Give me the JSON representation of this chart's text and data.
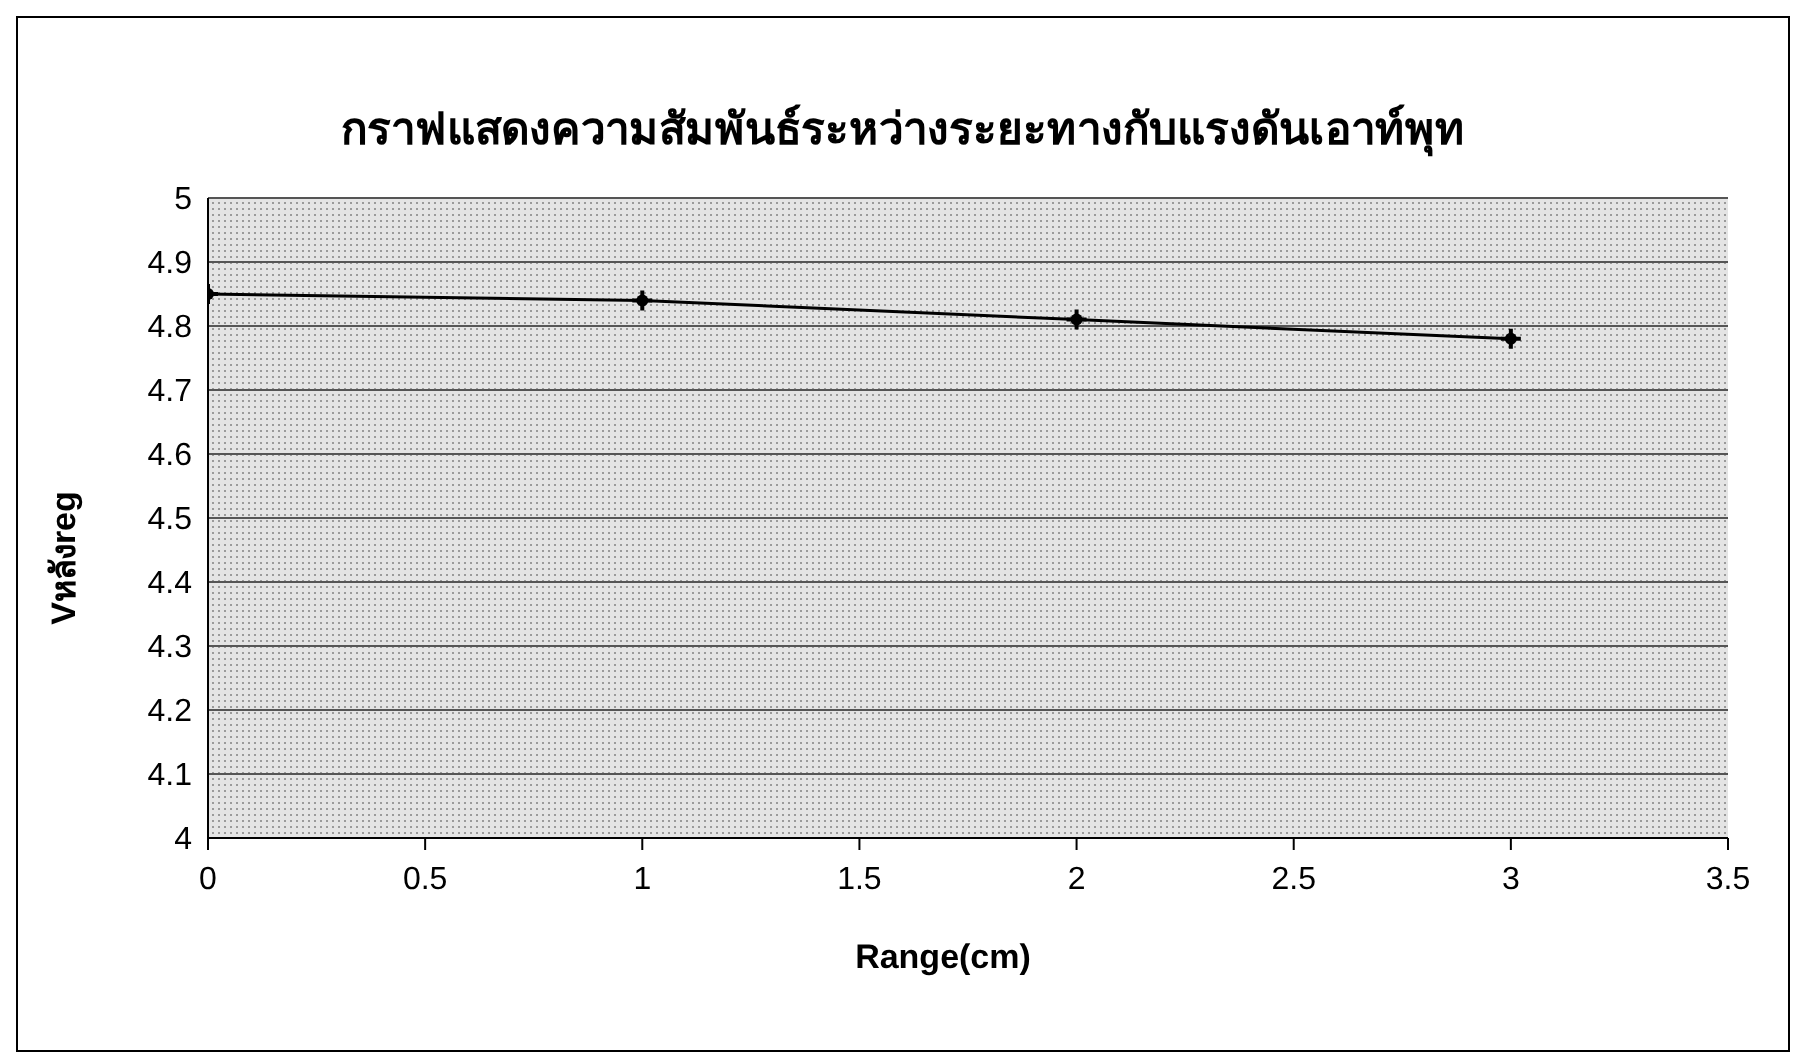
{
  "chart_data": {
    "type": "line",
    "title": "กราฟแสดงความสัมพันธ์ระหว่างระยะทางกับแรงดันเอาท์พุท",
    "xlabel": "Range(cm)",
    "ylabel": "Vหลังreg",
    "x": [
      0,
      1,
      2,
      3
    ],
    "series": [
      {
        "color": "#000000",
        "values": [
          4.85,
          4.84,
          4.81,
          4.78
        ]
      }
    ],
    "xlim": [
      0,
      3.5
    ],
    "xticks": [
      0,
      0.5,
      1,
      1.5,
      2,
      2.5,
      3,
      3.5
    ],
    "ylim": [
      4,
      5
    ],
    "yticks": [
      4,
      4.1,
      4.2,
      4.3,
      4.4,
      4.5,
      4.6,
      4.7,
      4.8,
      4.9,
      5
    ],
    "grid": "y",
    "marker": "cross",
    "line_style": "solid",
    "legend": false
  }
}
